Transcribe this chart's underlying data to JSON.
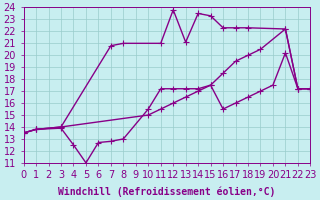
{
  "title": "",
  "xlabel": "Windchill (Refroidissement éolien,°C)",
  "bg_color": "#c8eef0",
  "line_color": "#880088",
  "grid_color": "#99cccc",
  "xlim": [
    0,
    23
  ],
  "ylim": [
    11,
    24
  ],
  "xticks": [
    0,
    1,
    2,
    3,
    4,
    5,
    6,
    7,
    8,
    9,
    10,
    11,
    12,
    13,
    14,
    15,
    16,
    17,
    18,
    19,
    20,
    21,
    22,
    23
  ],
  "yticks": [
    11,
    12,
    13,
    14,
    15,
    16,
    17,
    18,
    19,
    20,
    21,
    22,
    23,
    24
  ],
  "curve1_x": [
    0,
    1,
    3,
    10,
    11,
    12,
    13,
    14,
    15,
    16,
    17,
    18,
    19,
    20,
    21,
    22,
    23
  ],
  "curve1_y": [
    13.5,
    13.8,
    14.0,
    15.0,
    15.5,
    16.0,
    16.5,
    17.0,
    17.5,
    15.5,
    16.0,
    16.5,
    17.0,
    17.5,
    20.2,
    17.2,
    17.2
  ],
  "curve2_x": [
    0,
    1,
    3,
    4,
    5,
    6,
    7,
    8,
    10,
    11,
    12,
    13,
    14,
    15,
    16,
    17,
    18,
    19,
    21,
    22,
    23
  ],
  "curve2_y": [
    13.5,
    13.8,
    13.9,
    12.5,
    11.0,
    12.7,
    12.8,
    13.0,
    15.5,
    17.2,
    17.2,
    17.2,
    17.2,
    17.5,
    18.5,
    19.5,
    20.0,
    20.5,
    22.2,
    17.2,
    17.2
  ],
  "curve3_x": [
    0,
    1,
    3,
    7,
    8,
    11,
    12,
    13,
    14,
    15,
    16,
    17,
    18,
    21,
    22,
    23
  ],
  "curve3_y": [
    13.5,
    13.8,
    14.0,
    20.8,
    21.0,
    21.0,
    23.8,
    21.1,
    23.5,
    23.3,
    22.3,
    22.3,
    22.3,
    22.2,
    17.2,
    17.2
  ],
  "markersize": 3,
  "linewidth": 1.0,
  "font_size": 7
}
